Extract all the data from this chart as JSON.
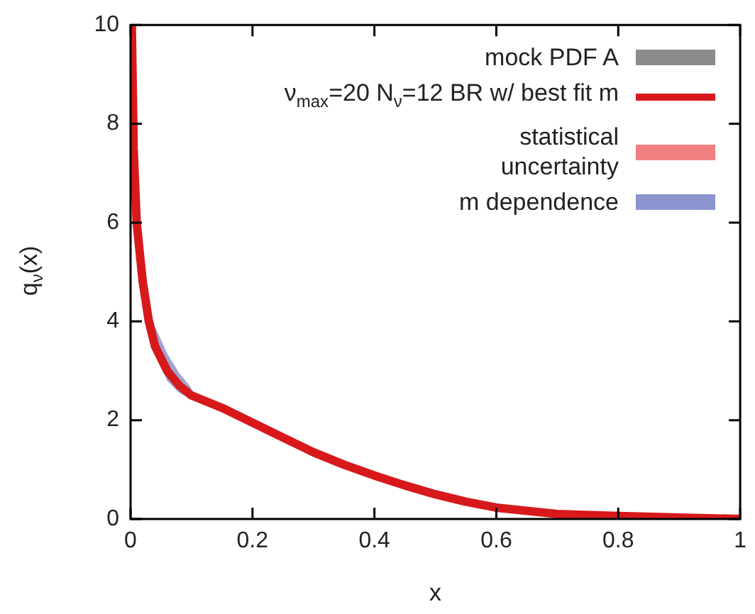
{
  "chart_data": {
    "type": "line",
    "xlabel": "x",
    "ylabel": "q$_{ν}$(x)",
    "x": [
      0.002,
      0.005,
      0.01,
      0.02,
      0.03,
      0.04,
      0.06,
      0.08,
      0.1,
      0.15,
      0.2,
      0.25,
      0.3,
      0.35,
      0.4,
      0.45,
      0.5,
      0.55,
      0.6,
      0.7,
      0.8,
      0.9,
      1
    ],
    "series": [
      {
        "name": "mock PDF A",
        "color": "#8c8c8c",
        "values": [
          null,
          null,
          null,
          null,
          null,
          null,
          null,
          null,
          null,
          null,
          null,
          null,
          null,
          null,
          null,
          null,
          null,
          null,
          null,
          null,
          null,
          null,
          null
        ]
      },
      {
        "name": "ν$_{max}$=20 N$_{ν}$=12 BR w/ best fit m",
        "color": "#d7191c",
        "values": [
          10,
          7.5,
          6,
          4.8,
          4.0,
          3.5,
          3.0,
          2.7,
          2.5,
          2.25,
          1.95,
          1.65,
          1.35,
          1.1,
          0.88,
          0.68,
          0.5,
          0.35,
          0.23,
          0.1,
          0.06,
          0.03,
          0
        ]
      },
      {
        "name": "statistical uncertainty",
        "color": "#f08080",
        "values": [
          null,
          null,
          null,
          null,
          null,
          null,
          null,
          null,
          null,
          null,
          null,
          null,
          null,
          null,
          null,
          null,
          null,
          null,
          null,
          null,
          null,
          null,
          null
        ]
      },
      {
        "name": "m dependence",
        "color": "#8c94d0",
        "values": [
          null,
          null,
          null,
          null,
          null,
          null,
          null,
          null,
          null,
          null,
          null,
          null,
          null,
          null,
          null,
          null,
          null,
          null,
          null,
          null,
          null,
          null,
          null
        ],
        "lower": [
          null,
          null,
          null,
          null,
          3.9,
          3.35,
          2.8,
          2.55,
          2.42,
          null,
          null,
          null,
          null,
          null,
          null,
          null,
          null,
          null,
          null,
          null,
          null,
          null,
          null
        ],
        "upper": [
          null,
          null,
          null,
          null,
          4.3,
          3.9,
          3.35,
          2.95,
          2.65,
          null,
          null,
          null,
          null,
          null,
          null,
          null,
          null,
          null,
          null,
          null,
          null,
          null,
          null
        ]
      }
    ],
    "xlim": [
      0,
      1
    ],
    "xticks": [
      0,
      0.2,
      0.4,
      0.6,
      0.8,
      1
    ],
    "ylim": [
      0,
      10
    ],
    "yticks": [
      0,
      2,
      4,
      6,
      8,
      10
    ],
    "grid": false,
    "legend": "top right",
    "marker": "none",
    "line_style": "solid"
  }
}
